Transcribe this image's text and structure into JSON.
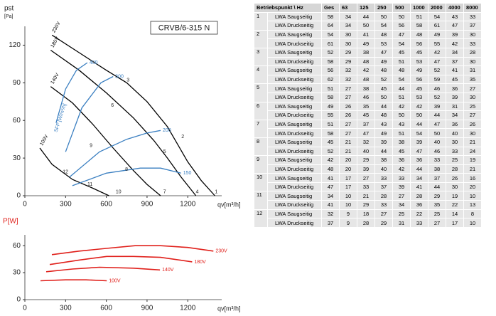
{
  "chart_data": [
    {
      "type": "line",
      "title": "CRVB/6-315 N",
      "y_label": "pst",
      "y_unit": "[Pa]",
      "x_label": "qv[m³/h]",
      "xlim": [
        0,
        1450
      ],
      "ylim": [
        0,
        135
      ],
      "xticks": [
        0,
        300,
        600,
        900,
        1200
      ],
      "yticks": [
        0,
        30,
        60,
        90,
        120
      ],
      "grid": false,
      "series": [
        {
          "name": "230V",
          "color": "#000000",
          "x": [
            200,
            400,
            600,
            750,
            900,
            1050,
            1200,
            1300,
            1400
          ],
          "values": [
            128,
            114,
            100,
            90,
            75,
            55,
            27,
            12,
            0
          ]
        },
        {
          "name": "180V",
          "color": "#000000",
          "x": [
            190,
            400,
            600,
            800,
            950,
            1050,
            1150,
            1260
          ],
          "values": [
            116,
            100,
            82,
            62,
            44,
            30,
            15,
            0
          ]
        },
        {
          "name": "140V",
          "color": "#000000",
          "x": [
            190,
            350,
            500,
            650,
            800,
            900,
            1000
          ],
          "values": [
            87,
            74,
            57,
            38,
            20,
            9,
            0
          ]
        },
        {
          "name": "100V",
          "color": "#000000",
          "x": [
            110,
            200,
            350,
            500,
            620
          ],
          "values": [
            38,
            25,
            13,
            6,
            0
          ]
        },
        {
          "name": "400",
          "color": "#3a7fc1",
          "x": [
            230,
            300,
            380,
            460
          ],
          "values": [
            58,
            85,
            100,
            106
          ]
        },
        {
          "name": "300",
          "color": "#3a7fc1",
          "x": [
            300,
            420,
            560,
            650
          ],
          "values": [
            35,
            70,
            90,
            95
          ]
        },
        {
          "name": "200",
          "color": "#3a7fc1",
          "x": [
            330,
            550,
            750,
            900,
            1000
          ],
          "values": [
            15,
            35,
            45,
            50,
            52
          ]
        },
        {
          "name": "150",
          "color": "#3a7fc1",
          "x": [
            350,
            600,
            850,
            1000,
            1150
          ],
          "values": [
            8,
            18,
            22,
            22,
            18
          ]
        }
      ],
      "annotations": [
        {
          "text": "1",
          "x": 1410,
          "y": 3
        },
        {
          "text": "2",
          "x": 1163,
          "y": 47
        },
        {
          "text": "3",
          "x": 760,
          "y": 92
        },
        {
          "text": "4",
          "x": 1270,
          "y": 3
        },
        {
          "text": "5",
          "x": 1030,
          "y": 35
        },
        {
          "text": "6",
          "x": 645,
          "y": 72
        },
        {
          "text": "7",
          "x": 1030,
          "y": 3
        },
        {
          "text": "8",
          "x": 749,
          "y": 21
        },
        {
          "text": "9",
          "x": 487,
          "y": 40
        },
        {
          "text": "10",
          "x": 690,
          "y": 3
        },
        {
          "text": "11",
          "x": 480,
          "y": 9
        },
        {
          "text": "12",
          "x": 299,
          "y": 19
        },
        {
          "text": "SFP [W/m³/h]",
          "x": 262,
          "y": 62
        }
      ]
    },
    {
      "type": "line",
      "y_label": "P[W]",
      "x_label": "qv[m³/h]",
      "xlim": [
        0,
        1450
      ],
      "ylim": [
        0,
        72
      ],
      "xticks": [
        0,
        300,
        600,
        900,
        1200
      ],
      "yticks": [
        0,
        30,
        60
      ],
      "grid": false,
      "series": [
        {
          "name": "230V",
          "color": "#e0201b",
          "x": [
            199,
            400,
            600,
            812,
            1000,
            1200,
            1389
          ],
          "values": [
            50,
            54,
            57,
            60,
            60,
            58,
            54
          ]
        },
        {
          "name": "180V",
          "color": "#e0201b",
          "x": [
            183,
            400,
            603,
            800,
            1000,
            1232
          ],
          "values": [
            39,
            44,
            48,
            48,
            47,
            42
          ]
        },
        {
          "name": "140V",
          "color": "#e0201b",
          "x": [
            157,
            350,
            550,
            800,
            995
          ],
          "values": [
            31,
            34,
            36,
            35,
            33
          ]
        },
        {
          "name": "100V",
          "color": "#e0201b",
          "x": [
            115,
            300,
            450,
            603
          ],
          "values": [
            21,
            22,
            22,
            21
          ]
        }
      ]
    }
  ],
  "table": {
    "header": [
      "Betriebspunkt \\ Hz",
      "Ges",
      "63",
      "125",
      "250",
      "500",
      "1000",
      "2000",
      "4000",
      "8000"
    ],
    "groups": [
      {
        "point": "1",
        "rows": [
          {
            "label": "LWA Saugseitig",
            "values": [
              58,
              34,
              44,
              50,
              50,
              51,
              54,
              43,
              33
            ]
          },
          {
            "label": "LWA Druckseitig",
            "values": [
              64,
              34,
              50,
              54,
              56,
              58,
              61,
              47,
              37
            ]
          }
        ]
      },
      {
        "point": "2",
        "rows": [
          {
            "label": "LWA Saugseitig",
            "values": [
              54,
              30,
              41,
              48,
              47,
              48,
              49,
              39,
              30
            ]
          },
          {
            "label": "LWA Druckseitig",
            "values": [
              61,
              30,
              49,
              53,
              54,
              56,
              55,
              42,
              33
            ]
          }
        ]
      },
      {
        "point": "3",
        "rows": [
          {
            "label": "LWA Saugseitig",
            "values": [
              52,
              29,
              38,
              47,
              45,
              45,
              42,
              34,
              28
            ]
          },
          {
            "label": "LWA Druckseitig",
            "values": [
              58,
              29,
              48,
              49,
              51,
              53,
              47,
              37,
              30
            ]
          }
        ]
      },
      {
        "point": "4",
        "rows": [
          {
            "label": "LWA Saugseitig",
            "values": [
              56,
              32,
              42,
              48,
              48,
              49,
              52,
              41,
              31
            ]
          },
          {
            "label": "LWA Druckseitig",
            "values": [
              62,
              32,
              48,
              52,
              54,
              56,
              59,
              45,
              35
            ]
          }
        ]
      },
      {
        "point": "5",
        "rows": [
          {
            "label": "LWA Saugseitig",
            "values": [
              51,
              27,
              38,
              45,
              44,
              45,
              46,
              36,
              27
            ]
          },
          {
            "label": "LWA Druckseitig",
            "values": [
              58,
              27,
              46,
              50,
              51,
              53,
              52,
              39,
              30
            ]
          }
        ]
      },
      {
        "point": "6",
        "rows": [
          {
            "label": "LWA Saugseitig",
            "values": [
              49,
              26,
              35,
              44,
              42,
              42,
              39,
              31,
              25
            ]
          },
          {
            "label": "LWA Druckseitig",
            "values": [
              55,
              26,
              45,
              48,
              50,
              50,
              44,
              34,
              27
            ]
          }
        ]
      },
      {
        "point": "7",
        "rows": [
          {
            "label": "LWA Saugseitig",
            "values": [
              51,
              27,
              37,
              43,
              43,
              44,
              47,
              36,
              26
            ]
          },
          {
            "label": "LWA Druckseitig",
            "values": [
              58,
              27,
              47,
              49,
              51,
              54,
              50,
              40,
              30
            ]
          }
        ]
      },
      {
        "point": "8",
        "rows": [
          {
            "label": "LWA Saugseitig",
            "values": [
              45,
              21,
              32,
              39,
              38,
              39,
              40,
              30,
              21
            ]
          },
          {
            "label": "LWA Druckseitig",
            "values": [
              52,
              21,
              40,
              44,
              45,
              47,
              46,
              33,
              24
            ]
          }
        ]
      },
      {
        "point": "9",
        "rows": [
          {
            "label": "LWA Saugseitig",
            "values": [
              42,
              20,
              29,
              38,
              36,
              36,
              33,
              25,
              19
            ]
          },
          {
            "label": "LWA Druckseitig",
            "values": [
              48,
              20,
              39,
              40,
              42,
              44,
              38,
              28,
              21
            ]
          }
        ]
      },
      {
        "point": "10",
        "rows": [
          {
            "label": "LWA Saugseitig",
            "values": [
              41,
              17,
              27,
              33,
              33,
              34,
              37,
              26,
              16
            ]
          },
          {
            "label": "LWA Druckseitig",
            "values": [
              47,
              17,
              33,
              37,
              39,
              41,
              44,
              30,
              20
            ]
          }
        ]
      },
      {
        "point": "11",
        "rows": [
          {
            "label": "LWA Saugseitig",
            "values": [
              34,
              10,
              21,
              28,
              27,
              28,
              29,
              19,
              10
            ]
          },
          {
            "label": "LWA Druckseitig",
            "values": [
              41,
              10,
              29,
              33,
              34,
              36,
              35,
              22,
              13
            ]
          }
        ]
      },
      {
        "point": "12",
        "rows": [
          {
            "label": "LWA Saugseitig",
            "values": [
              32,
              9,
              18,
              27,
              25,
              22,
              25,
              14,
              8
            ]
          },
          {
            "label": "LWA Druckseitig",
            "values": [
              37,
              9,
              28,
              29,
              31,
              33,
              27,
              17,
              10
            ]
          }
        ]
      }
    ]
  }
}
